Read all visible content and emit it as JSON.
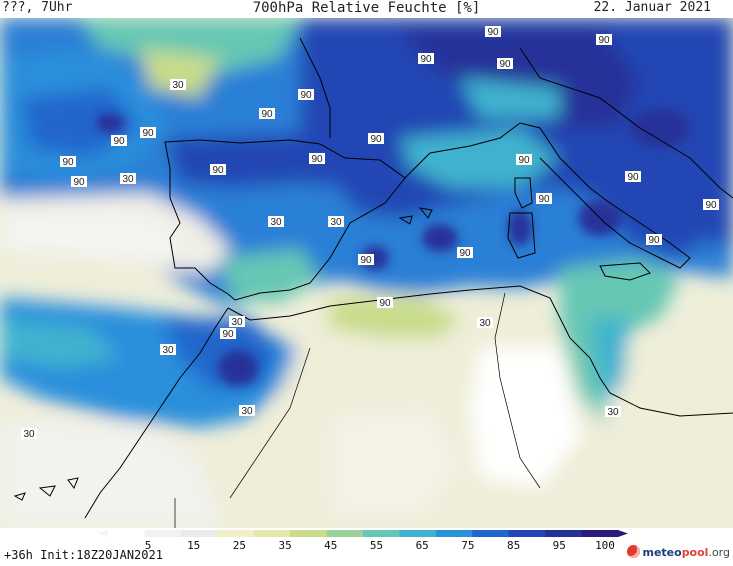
{
  "header": {
    "left_label": "???, 7Uhr",
    "title": "700hPa Relative Feuchte [%]",
    "date": "22. Januar 2021"
  },
  "footer": {
    "run_info": "+36h Init:18Z20JAN2021",
    "brand_meteo": "meteo",
    "brand_pool": "pool",
    "brand_org": ".org"
  },
  "colorbar": {
    "ticks": [
      "5",
      "15",
      "25",
      "35",
      "45",
      "55",
      "65",
      "75",
      "85",
      "95",
      "100"
    ],
    "colors": [
      "#ffffff",
      "#f2f2f2",
      "#eaeae6",
      "#f2efc9",
      "#e6e8aa",
      "#c8dc8a",
      "#9cd29a",
      "#66c7b4",
      "#3fb3cf",
      "#2c8fdc",
      "#2166cc",
      "#2346b4",
      "#27309a",
      "#2a1c78"
    ]
  },
  "contour_labels": [
    "90",
    "30",
    "90",
    "90",
    "90",
    "90",
    "90",
    "90",
    "90",
    "30",
    "90",
    "90",
    "90",
    "90",
    "90",
    "90",
    "90",
    "90",
    "30",
    "30",
    "90",
    "90",
    "90",
    "90",
    "30",
    "90",
    "90",
    "30",
    "30",
    "30",
    "30",
    "30",
    "30"
  ]
}
